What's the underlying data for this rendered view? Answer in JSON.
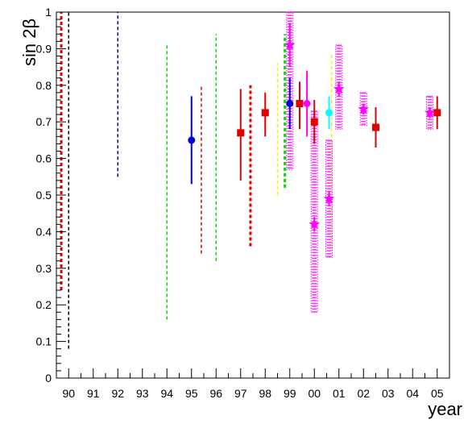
{
  "chart_data": {
    "type": "scatter",
    "title": "",
    "xlabel": "year",
    "ylabel": "sin 2β",
    "xlim": [
      1989.5,
      2005.5
    ],
    "ylim": [
      0,
      1
    ],
    "grid": false,
    "x_tick_labels": [
      "90",
      "91",
      "92",
      "93",
      "94",
      "95",
      "96",
      "97",
      "98",
      "99",
      "00",
      "01",
      "02",
      "03",
      "04",
      "05"
    ],
    "y_tick_labels": [
      "0",
      "0.1",
      "0.2",
      "0.3",
      "0.4",
      "0.5",
      "0.6",
      "0.7",
      "0.8",
      "0.9",
      "1"
    ],
    "colors": {
      "red": "#e00000",
      "blue": "#0000e0",
      "navy": "#00009c",
      "green": "#00dd00",
      "yellow": "#f2f200",
      "magenta": "#ff00ff",
      "cyan": "#00ffff",
      "black": "#000000"
    },
    "dashed_bounds": [
      {
        "x": 1989.7,
        "low": 0.24,
        "high": 1.0,
        "color": "red",
        "thick": true
      },
      {
        "x": 1990.0,
        "low": 0.08,
        "high": 1.0,
        "color": "black"
      },
      {
        "x": 1992.0,
        "low": 0.55,
        "high": 1.0,
        "color": "navy"
      },
      {
        "x": 1994.0,
        "low": 0.16,
        "high": 0.91,
        "color": "green"
      },
      {
        "x": 1995.4,
        "low": 0.34,
        "high": 0.8,
        "color": "red"
      },
      {
        "x": 1996.0,
        "low": 0.32,
        "high": 0.94,
        "color": "green"
      },
      {
        "x": 1997.4,
        "low": 0.36,
        "high": 0.8,
        "color": "red",
        "thick": true
      },
      {
        "x": 1998.5,
        "low": 0.5,
        "high": 0.86,
        "color": "yellow"
      },
      {
        "x": 1998.8,
        "low": 0.52,
        "high": 0.94,
        "color": "green",
        "thick": true
      },
      {
        "x": 2000.7,
        "low": 0.35,
        "high": 0.89,
        "color": "yellow"
      }
    ],
    "bands": [
      {
        "x": 1999.0,
        "low": 0.57,
        "high": 1.0
      },
      {
        "x": 2000.0,
        "low": 0.18,
        "high": 0.73
      },
      {
        "x": 2000.6,
        "low": 0.33,
        "high": 0.65
      },
      {
        "x": 2001.0,
        "low": 0.68,
        "high": 0.91
      },
      {
        "x": 2002.0,
        "low": 0.69,
        "high": 0.78
      },
      {
        "x": 2004.7,
        "low": 0.68,
        "high": 0.77
      }
    ],
    "points": [
      {
        "x": 1995.0,
        "y": 0.65,
        "low": 0.53,
        "high": 0.77,
        "color": "blue",
        "marker": "circle"
      },
      {
        "x": 1997.0,
        "y": 0.67,
        "low": 0.54,
        "high": 0.79,
        "color": "red",
        "marker": "square"
      },
      {
        "x": 1998.0,
        "y": 0.725,
        "low": 0.66,
        "high": 0.78,
        "color": "red",
        "marker": "square"
      },
      {
        "x": 1999.0,
        "y": 0.91,
        "low": 0.85,
        "high": 0.97,
        "color": "magenta",
        "marker": "star"
      },
      {
        "x": 1999.0,
        "y": 0.75,
        "low": 0.68,
        "high": 0.82,
        "color": "blue",
        "marker": "circle"
      },
      {
        "x": 1999.4,
        "y": 0.75,
        "low": 0.68,
        "high": 0.81,
        "color": "red",
        "marker": "square"
      },
      {
        "x": 1999.7,
        "y": 0.75,
        "low": 0.66,
        "high": 0.84,
        "color": "magenta",
        "marker": "circle"
      },
      {
        "x": 2000.0,
        "y": 0.7,
        "low": 0.64,
        "high": 0.76,
        "color": "red",
        "marker": "square"
      },
      {
        "x": 2000.0,
        "y": 0.42,
        "low": 0.4,
        "high": 0.44,
        "color": "magenta",
        "marker": "star"
      },
      {
        "x": 2000.6,
        "y": 0.725,
        "low": 0.68,
        "high": 0.77,
        "color": "cyan",
        "marker": "circle"
      },
      {
        "x": 2000.6,
        "y": 0.49,
        "low": 0.47,
        "high": 0.51,
        "color": "magenta",
        "marker": "star"
      },
      {
        "x": 2001.0,
        "y": 0.79,
        "low": 0.77,
        "high": 0.81,
        "color": "magenta",
        "marker": "star"
      },
      {
        "x": 2002.0,
        "y": 0.735,
        "low": 0.72,
        "high": 0.75,
        "color": "magenta",
        "marker": "star"
      },
      {
        "x": 2002.5,
        "y": 0.685,
        "low": 0.63,
        "high": 0.74,
        "color": "red",
        "marker": "square"
      },
      {
        "x": 2004.7,
        "y": 0.725,
        "low": 0.71,
        "high": 0.74,
        "color": "magenta",
        "marker": "star"
      },
      {
        "x": 2005.0,
        "y": 0.725,
        "low": 0.68,
        "high": 0.77,
        "color": "red",
        "marker": "square"
      }
    ]
  }
}
